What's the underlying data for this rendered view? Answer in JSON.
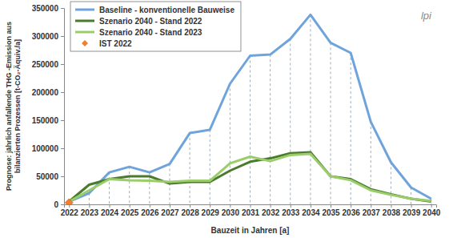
{
  "chart_data": {
    "type": "line",
    "x_label": "Bauzeit in Jahren [a]",
    "y_label": [
      "Prognose: jährlich anfallende THG -Emission aus",
      "bilanzierten Prozessen [t-CO₂-Äquiv./a]"
    ],
    "annotations": [
      "lpi"
    ],
    "categories": [
      "2022",
      "2023",
      "2024",
      "2025",
      "2026",
      "2027",
      "2028",
      "2029",
      "2030",
      "2031",
      "2032",
      "2033",
      "2034",
      "2035",
      "2036",
      "2037",
      "2038",
      "2039",
      "2040"
    ],
    "series": [
      {
        "name": "Baseline - konventionelle Bauweise",
        "color": "#6fa3dc",
        "type": "line",
        "values": [
          5000,
          20000,
          57000,
          67000,
          57000,
          72000,
          127000,
          133000,
          215000,
          265000,
          267000,
          295000,
          338000,
          288000,
          270000,
          147000,
          75000,
          30000,
          10000
        ]
      },
      {
        "name": "Szenario 2040 - Stand 2022",
        "color": "#4a7a2c",
        "type": "line",
        "values": [
          5000,
          35000,
          45000,
          50000,
          50000,
          37000,
          40000,
          40000,
          60000,
          76000,
          82000,
          91000,
          93000,
          50000,
          45000,
          27000,
          18000,
          10000,
          5000
        ]
      },
      {
        "name": "Szenario 2040 - Stand 2023",
        "color": "#9acd6a",
        "type": "line",
        "values": [
          5000,
          25000,
          45000,
          43000,
          42000,
          40000,
          42000,
          42000,
          73000,
          85000,
          77000,
          88000,
          90000,
          50000,
          43000,
          25000,
          17000,
          10000,
          6000
        ]
      },
      {
        "name": "IST 2022",
        "color": "#f0802c",
        "type": "scatter",
        "marker": "diamond",
        "values": [
          3000,
          null,
          null,
          null,
          null,
          null,
          null,
          null,
          null,
          null,
          null,
          null,
          null,
          null,
          null,
          null,
          null,
          null,
          null
        ]
      }
    ],
    "ylim": [
      0,
      350000
    ],
    "yticks": [
      0,
      50000,
      100000,
      150000,
      200000,
      250000,
      300000,
      350000
    ],
    "grid": false,
    "legend": "upper left"
  }
}
